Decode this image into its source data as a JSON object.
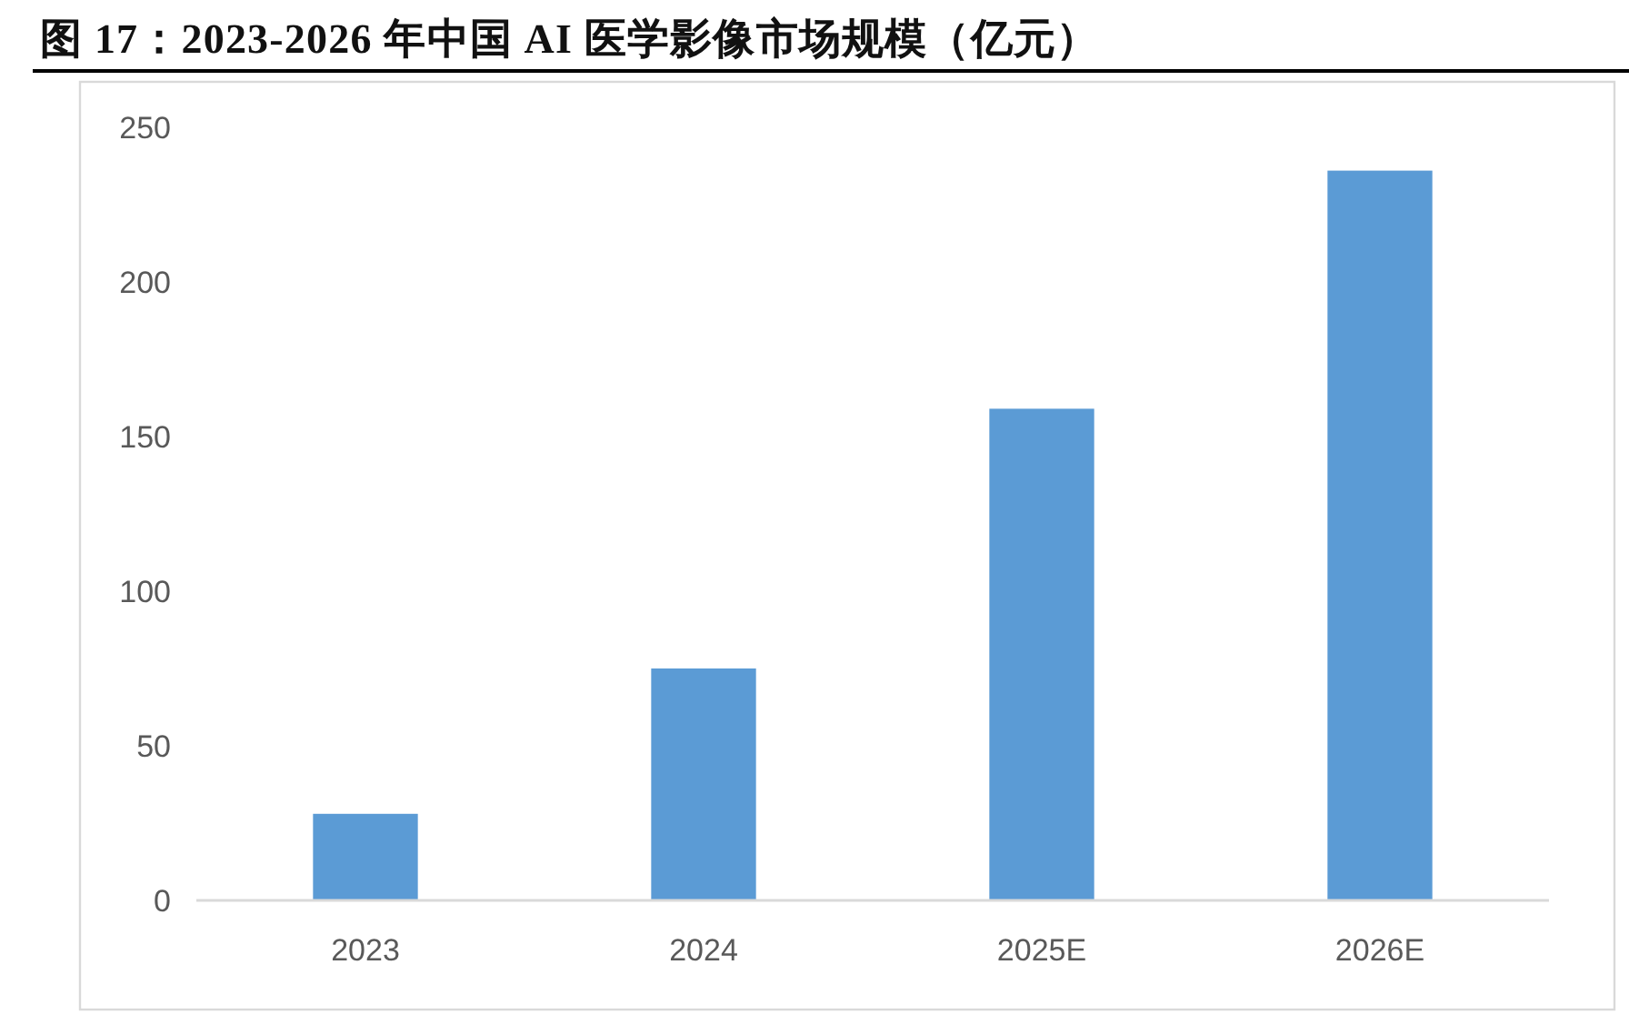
{
  "chart_data": {
    "type": "bar",
    "title": "图 17：2023-2026 年中国 AI 医学影像市场规模（亿元）",
    "categories": [
      "2023",
      "2024",
      "2025E",
      "2026E"
    ],
    "values": [
      28,
      75,
      159,
      236
    ],
    "color": "#5b9bd5",
    "ylim": [
      0,
      250
    ],
    "yticks": [
      0,
      50,
      100,
      150,
      200,
      250
    ]
  }
}
